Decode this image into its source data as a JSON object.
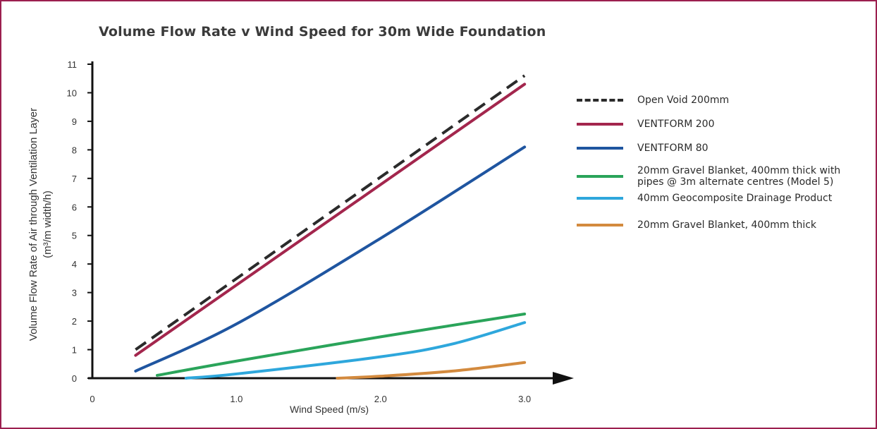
{
  "chart_data": {
    "type": "line",
    "title": "Volume Flow Rate v Wind Speed for 30m Wide Foundation",
    "xlabel": "Wind Speed (m/s)",
    "ylabel_line1": "Volume Flow Rate of Air through Ventilation Layer",
    "ylabel_line2": "(m³/m width/h)",
    "xlim": [
      0,
      3.2
    ],
    "ylim": [
      0,
      11
    ],
    "x_ticks": [
      "0",
      "1.0",
      "2.0",
      "3.0"
    ],
    "x_tick_values": [
      0,
      1.0,
      2.0,
      3.0
    ],
    "y_ticks": [
      "0",
      "1",
      "2",
      "3",
      "4",
      "5",
      "6",
      "7",
      "8",
      "9",
      "10",
      "11"
    ],
    "y_tick_values": [
      0,
      1,
      2,
      3,
      4,
      5,
      6,
      7,
      8,
      9,
      10,
      11
    ],
    "legend_position": "right",
    "series": [
      {
        "name": "Open Void 200mm",
        "color": "#2b2b2b",
        "dashed": true,
        "x": [
          0.3,
          3.0
        ],
        "y": [
          1.0,
          10.6
        ]
      },
      {
        "name": "VENTFORM 200",
        "color": "#a3264d",
        "dashed": false,
        "x": [
          0.3,
          3.0
        ],
        "y": [
          0.8,
          10.3
        ]
      },
      {
        "name": "VENTFORM 80",
        "color": "#1f55a0",
        "dashed": false,
        "x": [
          0.3,
          1.0,
          2.0,
          3.0
        ],
        "y": [
          0.25,
          1.9,
          4.9,
          8.1
        ]
      },
      {
        "name": "20mm Gravel Blanket, 400mm thick with pipes @ 3m alternate centres (Model 5)",
        "color": "#2aa45a",
        "dashed": false,
        "x": [
          0.45,
          1.0,
          2.0,
          3.0
        ],
        "y": [
          0.1,
          0.6,
          1.45,
          2.25
        ]
      },
      {
        "name": "40mm Geocomposite Drainage Product",
        "color": "#2ea7dc",
        "dashed": false,
        "x": [
          0.65,
          1.0,
          2.0,
          2.5,
          3.0
        ],
        "y": [
          0.0,
          0.15,
          0.75,
          1.2,
          1.95
        ]
      },
      {
        "name": "20mm Gravel Blanket, 400mm thick",
        "color": "#d38a3e",
        "dashed": false,
        "x": [
          1.7,
          2.0,
          2.5,
          3.0
        ],
        "y": [
          0.0,
          0.07,
          0.25,
          0.55
        ]
      }
    ],
    "legend_lines": [
      [
        "Open Void 200mm"
      ],
      [
        "VENTFORM 200"
      ],
      [
        "VENTFORM 80"
      ],
      [
        "20mm Gravel Blanket, 400mm thick with",
        "pipes @ 3m alternate centres (Model 5)"
      ],
      [
        "40mm Geocomposite Drainage Product"
      ],
      [
        "20mm Gravel Blanket, 400mm thick"
      ]
    ]
  }
}
